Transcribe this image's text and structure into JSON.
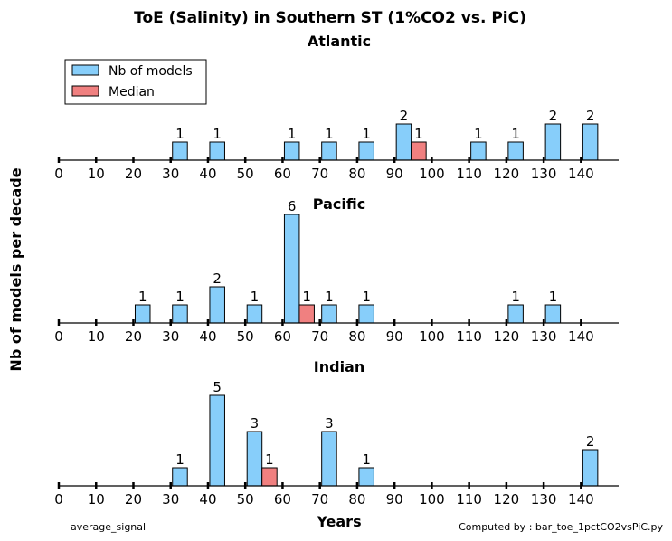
{
  "chart_data": {
    "type": "bar",
    "title": "ToE (Salinity) in Southern ST (1%CO2 vs. PiC)",
    "xlabel": "Years",
    "ylabel": "Nb of models per decade",
    "xlim": [
      0,
      150
    ],
    "x_ticks": [
      "0",
      "10",
      "20",
      "30",
      "40",
      "50",
      "60",
      "70",
      "80",
      "90",
      "100",
      "110",
      "120",
      "130",
      "140"
    ],
    "legend": {
      "position": "top-left",
      "entries": [
        "Nb of models",
        "Median"
      ]
    },
    "colors": {
      "models": "#87CEFA",
      "median": "#F08080"
    },
    "footer_left": "average_signal",
    "footer_right": "Computed by : bar_toe_1pctCO2vsPiC.py",
    "panels": [
      {
        "name": "Atlantic",
        "ymax": 6,
        "models": [
          {
            "x": 30,
            "count": 1
          },
          {
            "x": 40,
            "count": 1
          },
          {
            "x": 60,
            "count": 1
          },
          {
            "x": 70,
            "count": 1
          },
          {
            "x": 80,
            "count": 1
          },
          {
            "x": 90,
            "count": 2
          },
          {
            "x": 110,
            "count": 1
          },
          {
            "x": 120,
            "count": 1
          },
          {
            "x": 130,
            "count": 2
          },
          {
            "x": 140,
            "count": 2
          }
        ],
        "median": {
          "x": 90,
          "count": 1
        }
      },
      {
        "name": "Pacific",
        "ymax": 6,
        "models": [
          {
            "x": 20,
            "count": 1
          },
          {
            "x": 30,
            "count": 1
          },
          {
            "x": 40,
            "count": 2
          },
          {
            "x": 50,
            "count": 1
          },
          {
            "x": 60,
            "count": 6
          },
          {
            "x": 70,
            "count": 1
          },
          {
            "x": 80,
            "count": 1
          },
          {
            "x": 120,
            "count": 1
          },
          {
            "x": 130,
            "count": 1
          }
        ],
        "median": {
          "x": 60,
          "count": 1
        }
      },
      {
        "name": "Indian",
        "ymax": 6,
        "models": [
          {
            "x": 30,
            "count": 1
          },
          {
            "x": 40,
            "count": 5
          },
          {
            "x": 50,
            "count": 3
          },
          {
            "x": 70,
            "count": 3
          },
          {
            "x": 80,
            "count": 1
          },
          {
            "x": 140,
            "count": 2
          }
        ],
        "median": {
          "x": 50,
          "count": 1
        }
      }
    ]
  }
}
